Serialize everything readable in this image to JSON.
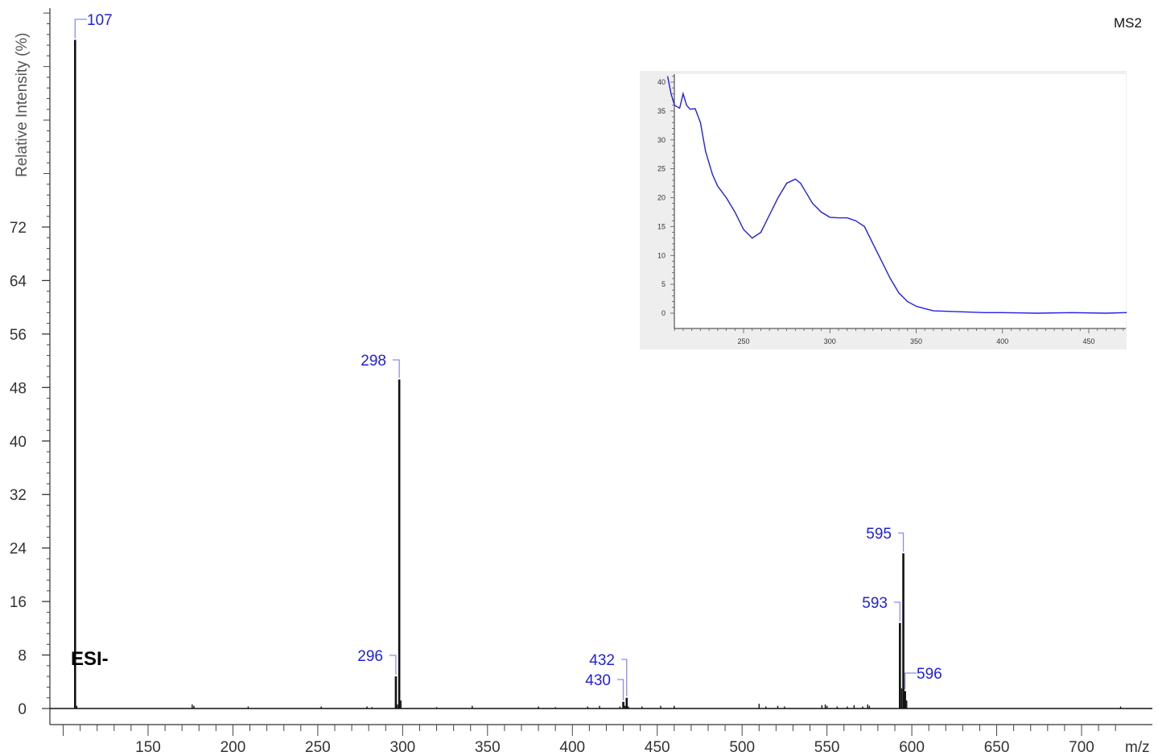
{
  "chart_data": [
    {
      "type": "bar",
      "title": "",
      "xlabel": "m/z",
      "ylabel": "Relative Intensity (%)",
      "scan_label": "MS2",
      "ionization_mode": "ESI-",
      "xlim": [
        80,
        725
      ],
      "ylim": [
        0,
        80
      ],
      "x_ticks": [
        150,
        200,
        250,
        300,
        350,
        400,
        450,
        500,
        550,
        600,
        650,
        700
      ],
      "y_ticks": [
        0,
        8,
        16,
        24,
        32,
        40,
        48,
        56,
        64,
        72
      ],
      "grid": false,
      "peaks": [
        {
          "mz": 107,
          "intensity": 100,
          "label": "107"
        },
        {
          "mz": 296,
          "intensity": 4.8,
          "label": "296"
        },
        {
          "mz": 298,
          "intensity": 49.2,
          "label": "298"
        },
        {
          "mz": 430,
          "intensity": 1.0,
          "label": "430"
        },
        {
          "mz": 432,
          "intensity": 1.6,
          "label": "432"
        },
        {
          "mz": 593,
          "intensity": 12.8,
          "label": "593"
        },
        {
          "mz": 595,
          "intensity": 23.2,
          "label": "595"
        },
        {
          "mz": 596,
          "intensity": 2.6,
          "label": "596"
        }
      ],
      "minor_peaks": [
        {
          "mz": 108,
          "intensity": 0.4
        },
        {
          "mz": 176,
          "intensity": 0.6
        },
        {
          "mz": 177,
          "intensity": 0.4
        },
        {
          "mz": 209,
          "intensity": 0.3
        },
        {
          "mz": 252,
          "intensity": 0.3
        },
        {
          "mz": 279,
          "intensity": 0.3
        },
        {
          "mz": 282,
          "intensity": 0.2
        },
        {
          "mz": 297,
          "intensity": 0.6
        },
        {
          "mz": 299,
          "intensity": 1.2
        },
        {
          "mz": 320,
          "intensity": 0.2
        },
        {
          "mz": 341,
          "intensity": 0.4
        },
        {
          "mz": 380,
          "intensity": 0.3
        },
        {
          "mz": 390,
          "intensity": 0.2
        },
        {
          "mz": 409,
          "intensity": 0.3
        },
        {
          "mz": 416,
          "intensity": 0.4
        },
        {
          "mz": 428,
          "intensity": 0.3
        },
        {
          "mz": 431,
          "intensity": 0.4
        },
        {
          "mz": 433,
          "intensity": 0.3
        },
        {
          "mz": 441,
          "intensity": 0.3
        },
        {
          "mz": 452,
          "intensity": 0.4
        },
        {
          "mz": 460,
          "intensity": 0.4
        },
        {
          "mz": 510,
          "intensity": 0.7
        },
        {
          "mz": 514,
          "intensity": 0.3
        },
        {
          "mz": 521,
          "intensity": 0.4
        },
        {
          "mz": 525,
          "intensity": 0.3
        },
        {
          "mz": 547,
          "intensity": 0.5
        },
        {
          "mz": 549,
          "intensity": 0.6
        },
        {
          "mz": 550,
          "intensity": 0.4
        },
        {
          "mz": 556,
          "intensity": 0.3
        },
        {
          "mz": 562,
          "intensity": 0.3
        },
        {
          "mz": 566,
          "intensity": 0.5
        },
        {
          "mz": 571,
          "intensity": 0.3
        },
        {
          "mz": 574,
          "intensity": 0.6
        },
        {
          "mz": 575,
          "intensity": 0.4
        },
        {
          "mz": 594,
          "intensity": 3.0
        },
        {
          "mz": 597,
          "intensity": 1.2
        },
        {
          "mz": 723,
          "intensity": 0.3
        }
      ]
    },
    {
      "type": "line",
      "title": "",
      "xlabel": "",
      "ylabel": "",
      "xlim": [
        206,
        472
      ],
      "ylim": [
        -2,
        42
      ],
      "x_ticks": [
        250,
        300,
        350,
        400,
        450
      ],
      "y_ticks": [
        0,
        5,
        10,
        15,
        20,
        25,
        30,
        35,
        40
      ],
      "grid": false,
      "color": "#1f1fe6",
      "series": [
        {
          "x": [
            206,
            208,
            210,
            213,
            215,
            217,
            219,
            222,
            225,
            228,
            232,
            235,
            240,
            245,
            250,
            255,
            260,
            265,
            270,
            275,
            280,
            283,
            286,
            290,
            295,
            300,
            305,
            310,
            315,
            320,
            325,
            330,
            335,
            340,
            345,
            350,
            355,
            360,
            370,
            380,
            390,
            400,
            420,
            440,
            460,
            472
          ],
          "y": [
            41,
            38,
            36,
            35.5,
            38,
            36,
            35.3,
            35.4,
            33,
            28,
            24,
            22,
            20,
            17.5,
            14.5,
            13,
            14,
            17,
            20,
            22.5,
            23.2,
            22.5,
            21,
            19,
            17.5,
            16.6,
            16.5,
            16.5,
            16,
            15,
            12,
            9,
            6,
            3.5,
            2,
            1.2,
            0.8,
            0.4,
            0.3,
            0.2,
            0.1,
            0.1,
            0.0,
            0.1,
            0.0,
            0.1
          ]
        }
      ]
    }
  ]
}
